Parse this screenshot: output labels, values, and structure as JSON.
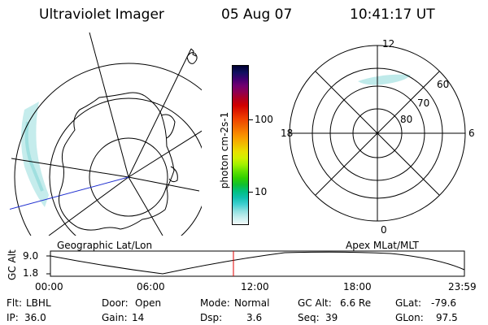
{
  "header": {
    "instrument": "Ultraviolet Imager",
    "date": "05 Aug 07",
    "time": "10:41:17 UT"
  },
  "colorbar": {
    "label": "photon cm-2s-1",
    "ticks": [
      "100",
      "10"
    ],
    "colors": [
      "#000030",
      "#101060",
      "#400070",
      "#700070",
      "#900050",
      "#b00020",
      "#d00000",
      "#e02000",
      "#f04000",
      "#f06000",
      "#f88000",
      "#f8a000",
      "#f0c000",
      "#e8e000",
      "#d0f000",
      "#a0f000",
      "#60e000",
      "#30d000",
      "#10c030",
      "#00c080",
      "#10c0b0",
      "#40d0d0",
      "#90e0e0",
      "#c8f0f0",
      "#f0f8f8"
    ]
  },
  "left_map": {
    "caption": "Geographic Lat/Lon"
  },
  "right_map": {
    "caption": "Apex MLat/MLT",
    "mlt_labels": [
      "12",
      "18",
      "6",
      "0"
    ],
    "lat_labels": [
      "60",
      "70",
      "80"
    ]
  },
  "altitude_plot": {
    "ylabel": "GC Alt",
    "yticks": [
      "9.0",
      "1.8"
    ],
    "xticks": [
      "00:00",
      "06:00",
      "12:00",
      "18:00",
      "23:59"
    ],
    "current_marker_hours": 10.69
  },
  "info": {
    "flt_label": "Flt:",
    "flt_value": "LBHL",
    "door_label": "Door:",
    "door_value": "Open",
    "mode_label": "Mode:",
    "mode_value": "Normal",
    "gcalt_label": "GC Alt:",
    "gcalt_value": "6.6 Re",
    "glat_label": "GLat:",
    "glat_value": "-79.6",
    "ip_label": "IP:",
    "ip_value": "36.0",
    "gain_label": "Gain:",
    "gain_value": "14",
    "dsp_label": "Dsp:",
    "dsp_value": "3.6",
    "seq_label": "Seq:",
    "seq_value": "39",
    "glon_label": "GLon:",
    "glon_value": "97.5"
  }
}
